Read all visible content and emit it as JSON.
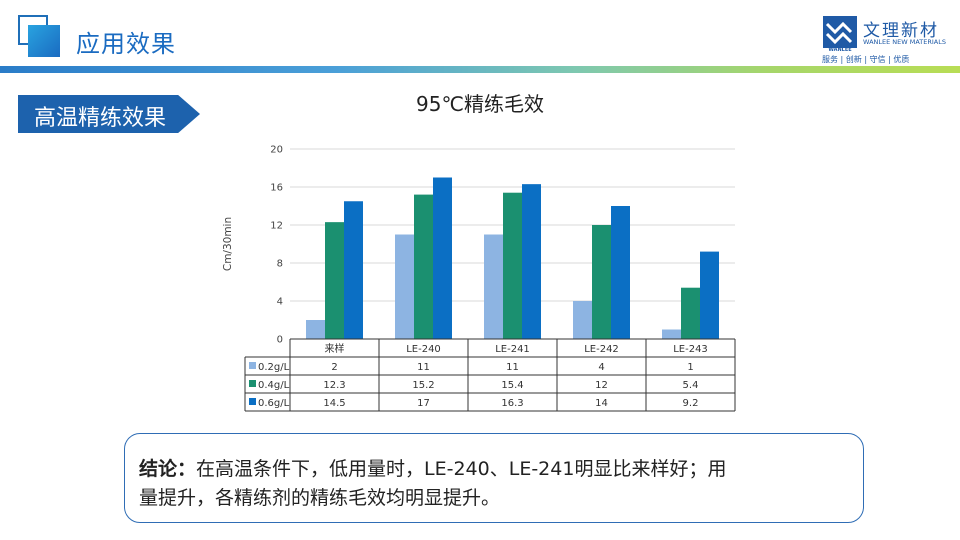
{
  "header": {
    "title": "应用效果"
  },
  "logo": {
    "brand_name": "文理新材",
    "mark_text": "WANLEE",
    "english_name": "WANLEE NEW MATERIALS",
    "slogan": "服务 | 创新 | 守信 | 优质",
    "brand_color": "#1f5aa6"
  },
  "section": {
    "label": "高温精练效果"
  },
  "chart_data": {
    "type": "bar",
    "title": "95℃精练毛效",
    "ylabel": "Cm/30min",
    "xlabel": "",
    "ylim": [
      0,
      20
    ],
    "yticks": [
      0,
      4,
      8,
      12,
      16,
      20
    ],
    "grid": true,
    "legend": "data-table",
    "categories": [
      "来样",
      "LE-240",
      "LE-241",
      "LE-242",
      "LE-243"
    ],
    "series": [
      {
        "name": "0.2g/L",
        "color": "#8db4e2",
        "values": [
          2,
          11,
          11,
          4,
          1
        ]
      },
      {
        "name": "0.4g/L",
        "color": "#1b9070",
        "values": [
          12.3,
          15.2,
          15.4,
          12,
          5.4
        ]
      },
      {
        "name": "0.6g/L",
        "color": "#0b6fc4",
        "values": [
          14.5,
          17,
          16.3,
          14,
          9.2
        ]
      }
    ]
  },
  "conclusion": {
    "prefix": "结论：",
    "line1": "在高温条件下，低用量时，LE-240、LE-241明显比来样好；用",
    "line2": "量提升，各精练剂的精练毛效均明显提升。"
  }
}
